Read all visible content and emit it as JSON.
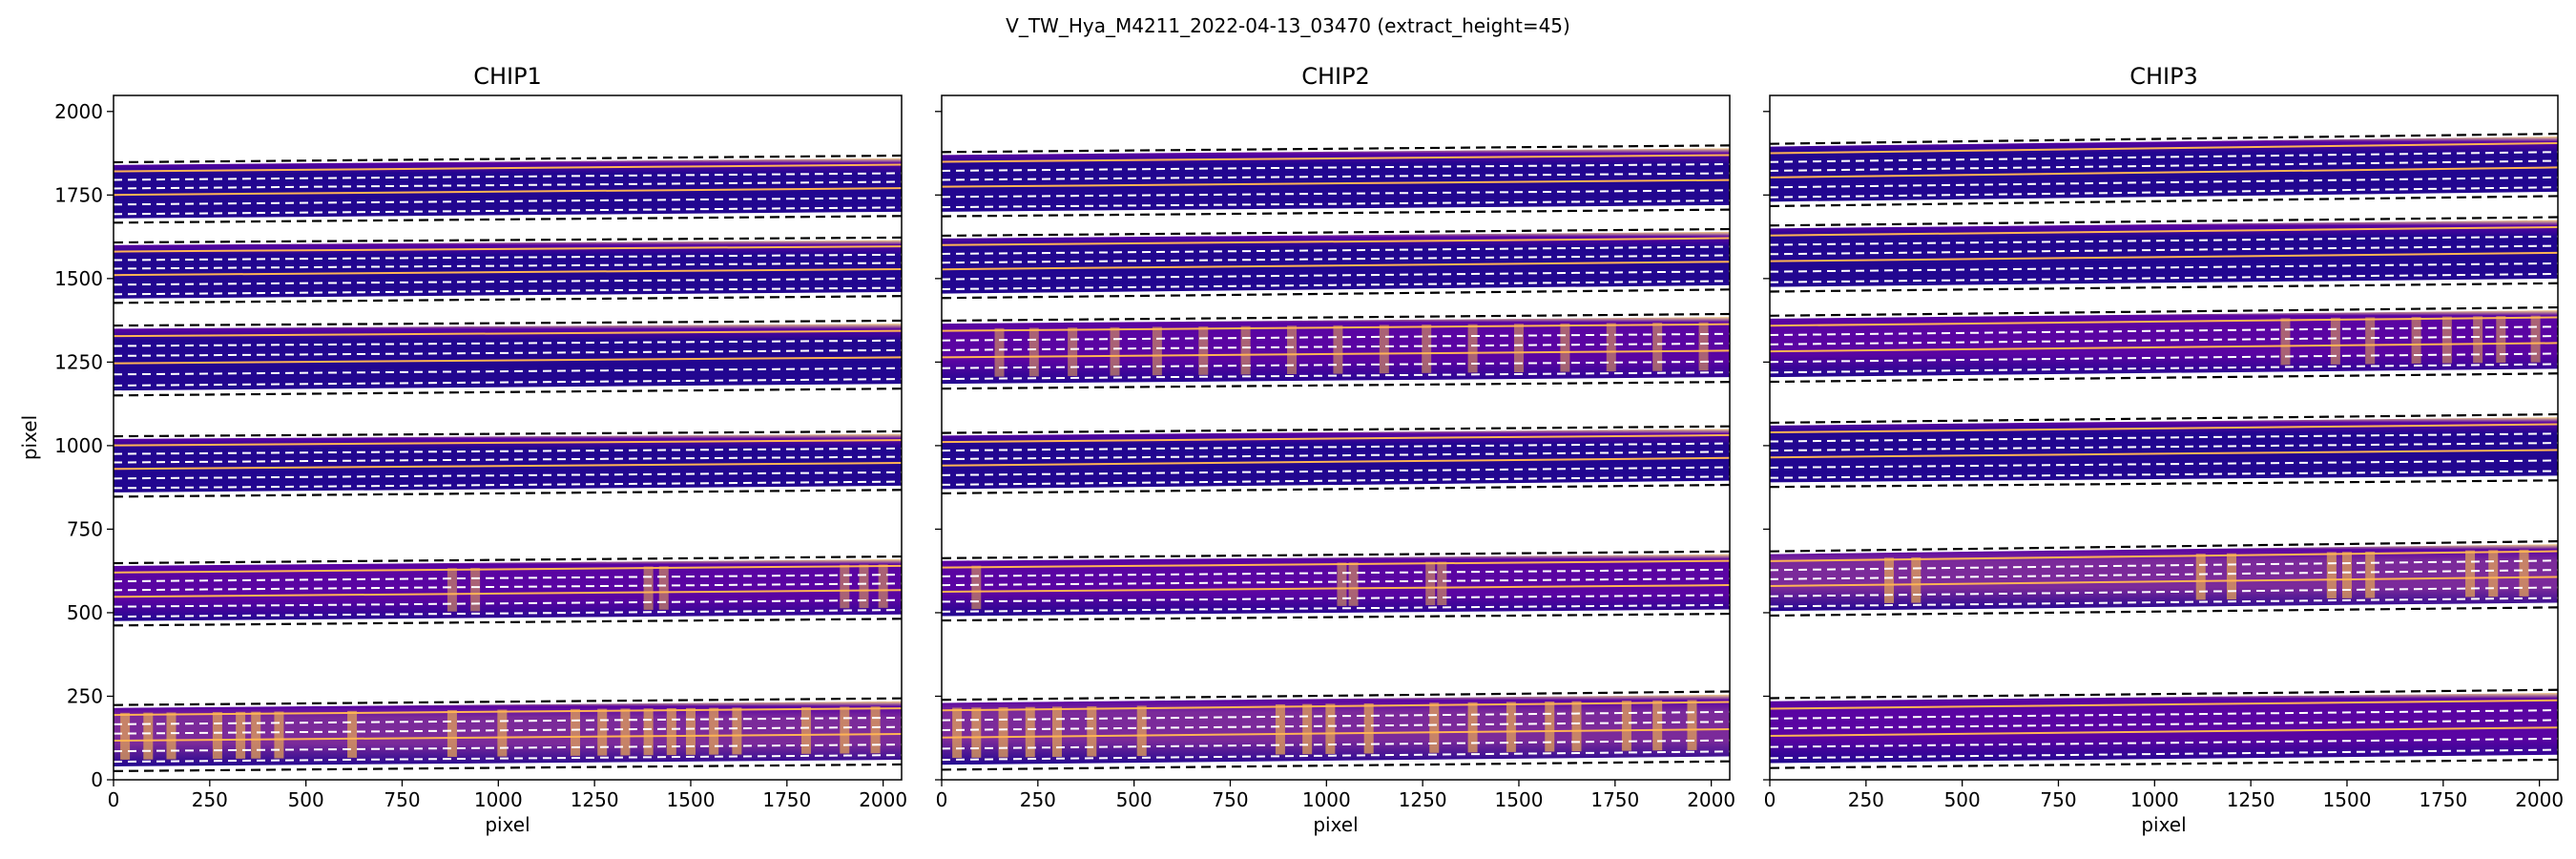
{
  "figure": {
    "suptitle": "V_TW_Hya_M4211_2022-04-13_03470  (extract_height=45)"
  },
  "colors": {
    "order_dark": "#220690",
    "order_mid": "#5a04a2",
    "order_hot": "#e0a157",
    "order_edge": "#f7d48a",
    "trace_edge": "#000000",
    "trace_mid": "#ffffff",
    "trace_line": "#ffb454"
  },
  "chart_data": [
    {
      "type": "heatmap",
      "title": "CHIP1",
      "xlabel": "pixel",
      "ylabel": "pixel",
      "xlim": [
        0,
        2048
      ],
      "ylim": [
        0,
        2048
      ],
      "xticks": [
        0,
        250,
        500,
        750,
        1000,
        1250,
        1500,
        1750,
        2000
      ],
      "yticks": [
        0,
        250,
        500,
        750,
        1000,
        1250,
        1500,
        1750,
        2000
      ],
      "show_yticklabels": true,
      "orders": [
        {
          "bottom": [
            40,
            60
          ],
          "top": [
            215,
            235
          ],
          "intensity": "high",
          "hot_x": [
            30,
            90,
            150,
            270,
            330,
            370,
            430,
            620,
            880,
            1010,
            1200,
            1270,
            1330,
            1390,
            1450,
            1500,
            1560,
            1620,
            1800,
            1900,
            1980
          ]
        },
        {
          "bottom": [
            475,
            495
          ],
          "top": [
            640,
            660
          ],
          "intensity": "mid",
          "hot_x": [
            880,
            940,
            1390,
            1430,
            1900,
            1950,
            2000
          ]
        },
        {
          "bottom": [
            860,
            880
          ],
          "top": [
            1020,
            1035
          ],
          "intensity": "low",
          "hot_x": []
        },
        {
          "bottom": [
            1165,
            1185
          ],
          "top": [
            1350,
            1365
          ],
          "intensity": "low",
          "hot_x": []
        },
        {
          "bottom": [
            1440,
            1460
          ],
          "top": [
            1600,
            1615
          ],
          "intensity": "low",
          "hot_x": []
        },
        {
          "bottom": [
            1680,
            1700
          ],
          "top": [
            1840,
            1860
          ],
          "intensity": "low",
          "hot_x": []
        }
      ]
    },
    {
      "type": "heatmap",
      "title": "CHIP2",
      "xlabel": "pixel",
      "ylabel": "",
      "xlim": [
        0,
        2048
      ],
      "ylim": [
        0,
        2048
      ],
      "xticks": [
        0,
        250,
        500,
        750,
        1000,
        1250,
        1500,
        1750,
        2000
      ],
      "yticks": [
        0,
        250,
        500,
        750,
        1000,
        1250,
        1500,
        1750,
        2000
      ],
      "show_yticklabels": false,
      "orders": [
        {
          "bottom": [
            45,
            70
          ],
          "top": [
            230,
            255
          ],
          "intensity": "high",
          "hot_x": [
            40,
            90,
            160,
            230,
            300,
            390,
            520,
            880,
            950,
            1010,
            1110,
            1280,
            1380,
            1480,
            1580,
            1650,
            1780,
            1860,
            1950
          ]
        },
        {
          "bottom": [
            490,
            510
          ],
          "top": [
            655,
            675
          ],
          "intensity": "mid",
          "hot_x": [
            90,
            1040,
            1070,
            1270,
            1300
          ]
        },
        {
          "bottom": [
            870,
            895
          ],
          "top": [
            1030,
            1050
          ],
          "intensity": "low",
          "hot_x": []
        },
        {
          "bottom": [
            1185,
            1205
          ],
          "top": [
            1365,
            1385
          ],
          "intensity": "mid",
          "hot_x": [
            150,
            240,
            340,
            450,
            560,
            680,
            790,
            910,
            1030,
            1150,
            1260,
            1380,
            1500,
            1620,
            1740,
            1860,
            1980
          ]
        },
        {
          "bottom": [
            1455,
            1480
          ],
          "top": [
            1620,
            1640
          ],
          "intensity": "low",
          "hot_x": []
        },
        {
          "bottom": [
            1700,
            1720
          ],
          "top": [
            1870,
            1890
          ],
          "intensity": "low",
          "hot_x": []
        }
      ]
    },
    {
      "type": "heatmap",
      "title": "CHIP3",
      "xlabel": "pixel",
      "ylabel": "",
      "xlim": [
        0,
        2048
      ],
      "ylim": [
        0,
        2048
      ],
      "xticks": [
        0,
        250,
        500,
        750,
        1000,
        1250,
        1500,
        1750,
        2000
      ],
      "yticks": [
        0,
        250,
        500,
        750,
        1000,
        1250,
        1500,
        1750,
        2000
      ],
      "show_yticklabels": false,
      "orders": [
        {
          "bottom": [
            50,
            75
          ],
          "top": [
            235,
            260
          ],
          "intensity": "mid",
          "hot_x": []
        },
        {
          "bottom": [
            505,
            530
          ],
          "top": [
            675,
            705
          ],
          "intensity": "high",
          "hot_x": [
            310,
            380,
            1120,
            1200,
            1460,
            1500,
            1560,
            1820,
            1880,
            1960
          ]
        },
        {
          "bottom": [
            890,
            910
          ],
          "top": [
            1060,
            1085
          ],
          "intensity": "low",
          "hot_x": []
        },
        {
          "bottom": [
            1205,
            1230
          ],
          "top": [
            1380,
            1405
          ],
          "intensity": "mid",
          "hot_x": [
            1340,
            1470,
            1560,
            1680,
            1760,
            1840,
            1900,
            1990
          ]
        },
        {
          "bottom": [
            1475,
            1500
          ],
          "top": [
            1650,
            1675
          ],
          "intensity": "low",
          "hot_x": []
        },
        {
          "bottom": [
            1730,
            1760
          ],
          "top": [
            1895,
            1925
          ],
          "intensity": "low",
          "hot_x": []
        }
      ]
    }
  ]
}
